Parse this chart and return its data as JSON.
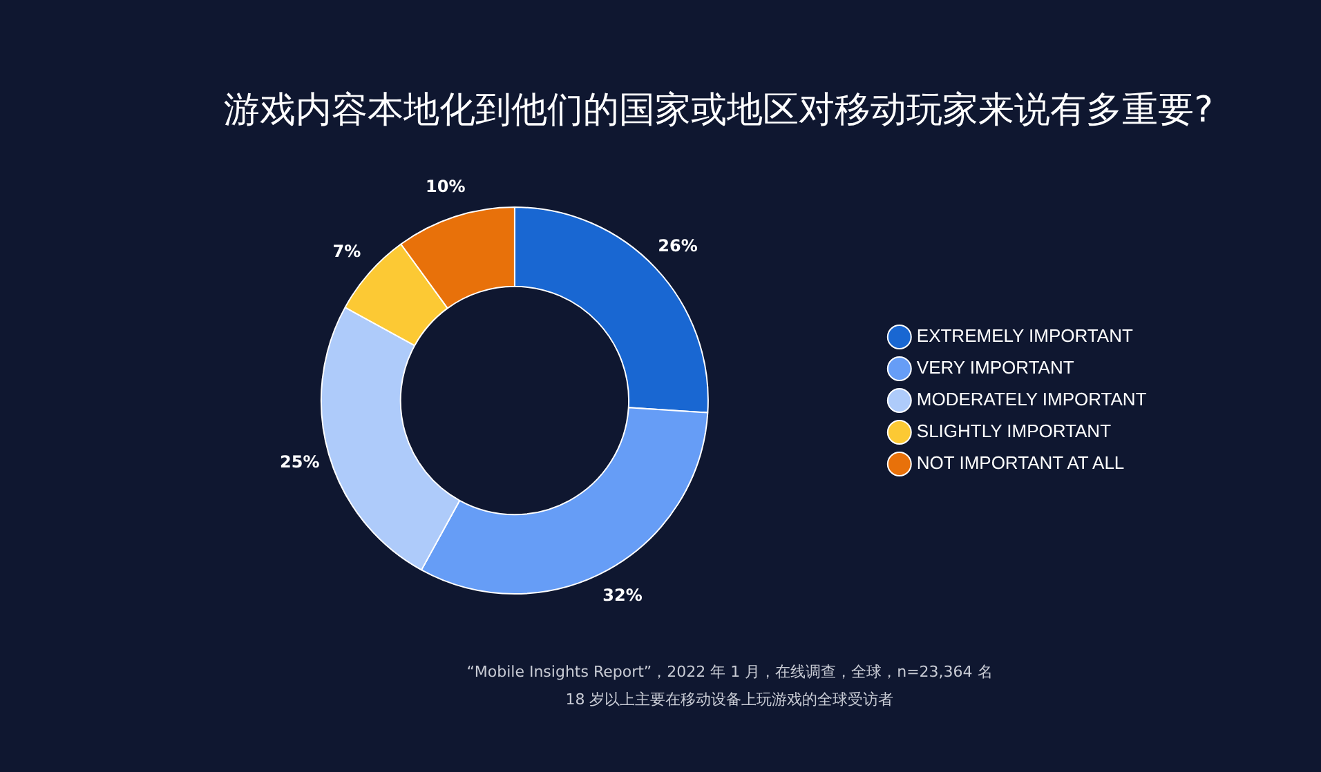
{
  "chart_data": {
    "type": "donut",
    "title": "游戏内容本地化到他们的国家或地区对移动玩家来说有多重要?",
    "categories": [
      "EXTREMELY IMPORTANT",
      "VERY IMPORTANT",
      "MODERATELY IMPORTANT",
      "SLIGHTLY IMPORTANT",
      "NOT IMPORTANT AT ALL"
    ],
    "values": [
      26,
      32,
      25,
      7,
      10
    ],
    "value_labels": [
      "26%",
      "32%",
      "25%",
      "7%",
      "10%"
    ],
    "colors": [
      "#1967d2",
      "#669df6",
      "#aecbfa",
      "#fcc934",
      "#e8710a"
    ],
    "legend": "right",
    "annotations": [
      "“Mobile Insights Report”，2022 年 1 月，在线调查，全球，n=23,364 名",
      "18 岁以上主要在移动设备上玩游戏的全球受访者"
    ]
  }
}
